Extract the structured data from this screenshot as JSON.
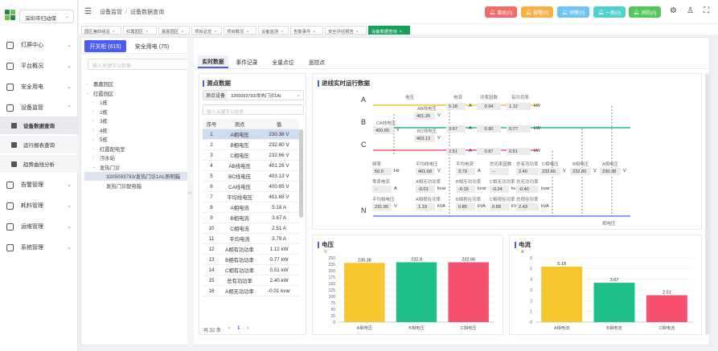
{
  "sidebar": {
    "city": "深圳市归动保",
    "items": [
      {
        "label": "灯屏中心",
        "icon": "building-icon"
      },
      {
        "label": "平台概况",
        "icon": "chart-icon"
      },
      {
        "label": "安全用电",
        "icon": "plug-icon"
      },
      {
        "label": "设备监管",
        "icon": "device-icon"
      }
    ],
    "sub_items": [
      "设备数据查询",
      "运行报表查询",
      "趋势曲线分析"
    ],
    "items2": [
      {
        "label": "告警管理",
        "icon": "alarm-icon"
      },
      {
        "label": "耗料管理",
        "icon": "material-icon"
      },
      {
        "label": "运维管理",
        "icon": "tool-icon"
      },
      {
        "label": "系统管理",
        "icon": "gear-icon"
      }
    ]
  },
  "topbar": {
    "breadcrumb": [
      "设备监管",
      "设备数据查询"
    ],
    "alarms": [
      {
        "label": "事故(0)",
        "color": "#f16b6b"
      },
      {
        "label": "报警(0)",
        "color": "#f7b046"
      },
      {
        "label": "预警(0)",
        "color": "#6fc2f2"
      },
      {
        "label": "一般(0)",
        "color": "#4fd0cd"
      },
      {
        "label": "消防(0)",
        "color": "#54c75a"
      }
    ]
  },
  "tabs": [
    "园区第四组总",
    "红霞园区",
    "嘉嘉园区",
    "项目总览",
    "项目概况",
    "设备监测",
    "告警事件",
    "安全评估报告",
    "设备数据查询"
  ],
  "left": {
    "tabs": [
      "开关柜 (615)",
      "安全用电 (75)"
    ],
    "search_placeholder": "输入关键字以检索",
    "tree": [
      {
        "label": "嘉嘉园区",
        "toggle": ">",
        "indent": 0
      },
      {
        "label": "红霞园区",
        "toggle": "v",
        "indent": 0
      },
      {
        "label": "1栋",
        "toggle": ">",
        "indent": 1
      },
      {
        "label": "2栋",
        "toggle": ">",
        "indent": 1
      },
      {
        "label": "3栋",
        "toggle": ">",
        "indent": 1
      },
      {
        "label": "4栋",
        "toggle": ">",
        "indent": 1
      },
      {
        "label": "5栋",
        "toggle": ">",
        "indent": 1
      },
      {
        "label": "红霞配电室",
        "toggle": ">",
        "indent": 1
      },
      {
        "label": "污水站",
        "toggle": ">",
        "indent": 1
      },
      {
        "label": "发热门诊",
        "toggle": "v",
        "indent": 1
      },
      {
        "label": "3205093793/发热门诊1AL照明箱",
        "toggle": "",
        "indent": 2,
        "selected": true
      },
      {
        "label": "发热门诊配电箱",
        "toggle": "",
        "indent": 2
      }
    ]
  },
  "content": {
    "tabs": [
      "实时数据",
      "事件记录",
      "全量点位",
      "遥控点"
    ],
    "measure": {
      "title": "测点数据",
      "device_label": "测点设备",
      "device_value": "3205093793/发热门诊1Al",
      "search_placeholder": "输入关键字以检索",
      "headers": [
        "序号",
        "测点",
        "值"
      ],
      "rows": [
        [
          "1",
          "A相电压",
          "230.38 V"
        ],
        [
          "2",
          "B相电压",
          "232.80 V"
        ],
        [
          "3",
          "C相电压",
          "232.66 V"
        ],
        [
          "4",
          "AB线电压",
          "401.26 V"
        ],
        [
          "5",
          "BC线电压",
          "403.13 V"
        ],
        [
          "6",
          "CA线电压",
          "400.65 V"
        ],
        [
          "7",
          "平均线电压",
          "401.68 V"
        ],
        [
          "8",
          "A相电流",
          "5.18 A"
        ],
        [
          "9",
          "B相电流",
          "3.67 A"
        ],
        [
          "10",
          "C相电流",
          "2.51 A"
        ],
        [
          "11",
          "平均电流",
          "3.79 A"
        ],
        [
          "12",
          "A相有功功率",
          "1.12 kW"
        ],
        [
          "13",
          "B相有功功率",
          "0.77 kW"
        ],
        [
          "14",
          "C相有功功率",
          "0.51 kW"
        ],
        [
          "15",
          "总有功功率",
          "2.40 kW"
        ],
        [
          "16",
          "A相无功功率",
          "-0.01 kvar"
        ]
      ],
      "total": "共 32 条",
      "page": "1"
    },
    "realtime": {
      "title": "进线实时运行数据",
      "phases": [
        "A",
        "B",
        "C",
        "N"
      ],
      "col_heads": [
        "电压",
        "电流",
        "功率因数",
        "有功功率"
      ],
      "rows": [
        {
          "voltage": "",
          "current": "5.18",
          "cur_unit": "A",
          "pf": "0.94",
          "power": "1.12",
          "p_unit": "kW"
        },
        {
          "voltage": "",
          "current": "3.67",
          "cur_unit": "A",
          "pf": "0.90",
          "power": "0.77",
          "p_unit": "kW"
        },
        {
          "voltage": "",
          "current": "2.51",
          "cur_unit": "A",
          "pf": "0.87",
          "power": "0.51",
          "p_unit": "kW"
        }
      ],
      "ab": {
        "label": "AB线电压",
        "value": "401.26",
        "unit": "V"
      },
      "ca": {
        "label": "CA线电压",
        "value": "400.65",
        "unit": "V"
      },
      "bc": {
        "label": "BC线电压",
        "value": "403.13",
        "unit": "V"
      },
      "summary": [
        [
          {
            "l": "频率",
            "v": "50.0",
            "u": "Hz"
          },
          {
            "l": "平均线电压",
            "v": "401.68",
            "u": "V"
          },
          {
            "l": "平均电流",
            "v": "3.79",
            "u": "A"
          },
          {
            "l": "总功率因数",
            "v": "--",
            "u": ""
          },
          {
            "l": "总有功功率",
            "v": "2.40",
            "u": "kW"
          }
        ],
        [
          {
            "l": "零序电流",
            "v": "--",
            "u": "A"
          },
          {
            "l": "A相无功功率",
            "v": "-0.01",
            "u": "kvar"
          },
          {
            "l": "B相无功功率",
            "v": "-0.15",
            "u": "kvar"
          },
          {
            "l": "C相无功功率",
            "v": "-0.24",
            "u": "kvar"
          },
          {
            "l": "总无功功率",
            "v": "-0.40",
            "u": "kvar"
          }
        ],
        [
          {
            "l": "平均相电压",
            "v": "231.95",
            "u": "V"
          },
          {
            "l": "A相视在功率",
            "v": "1.19",
            "u": "kVA"
          },
          {
            "l": "B相视在功率",
            "v": "0.85",
            "u": "kVA"
          },
          {
            "l": "C相视在功率",
            "v": "0.58",
            "u": "kVA"
          },
          {
            "l": "总视在功率",
            "v": "2.43",
            "u": "kVA"
          }
        ]
      ],
      "phase_v": [
        {
          "l": "C相电压",
          "v": "232.66"
        },
        {
          "l": "B相电压",
          "v": "232.80"
        },
        {
          "l": "A相电压",
          "v": "230.38"
        }
      ],
      "unit_v": "V",
      "neutral_label": "相电压"
    }
  },
  "chart_data": [
    {
      "type": "bar",
      "title": "电压",
      "ylabel": "V",
      "categories": [
        "A相电压",
        "B相电压",
        "C相电压"
      ],
      "values": [
        230.38,
        232.8,
        232.66
      ],
      "colors": [
        "#f7c52c",
        "#1fbf89",
        "#f5516f"
      ],
      "yticks": [
        0,
        25,
        50,
        75,
        100,
        125,
        150,
        175,
        200,
        225,
        250
      ],
      "ylim": [
        0,
        250
      ]
    },
    {
      "type": "bar",
      "title": "电流",
      "ylabel": "A",
      "categories": [
        "A相电流",
        "B相电流",
        "C相电流"
      ],
      "values": [
        5.18,
        3.67,
        2.51
      ],
      "colors": [
        "#f7c52c",
        "#1fbf89",
        "#f5516f"
      ],
      "yticks": [
        0,
        1,
        2,
        3,
        4,
        5,
        6
      ],
      "ylim": [
        0,
        6
      ]
    }
  ]
}
